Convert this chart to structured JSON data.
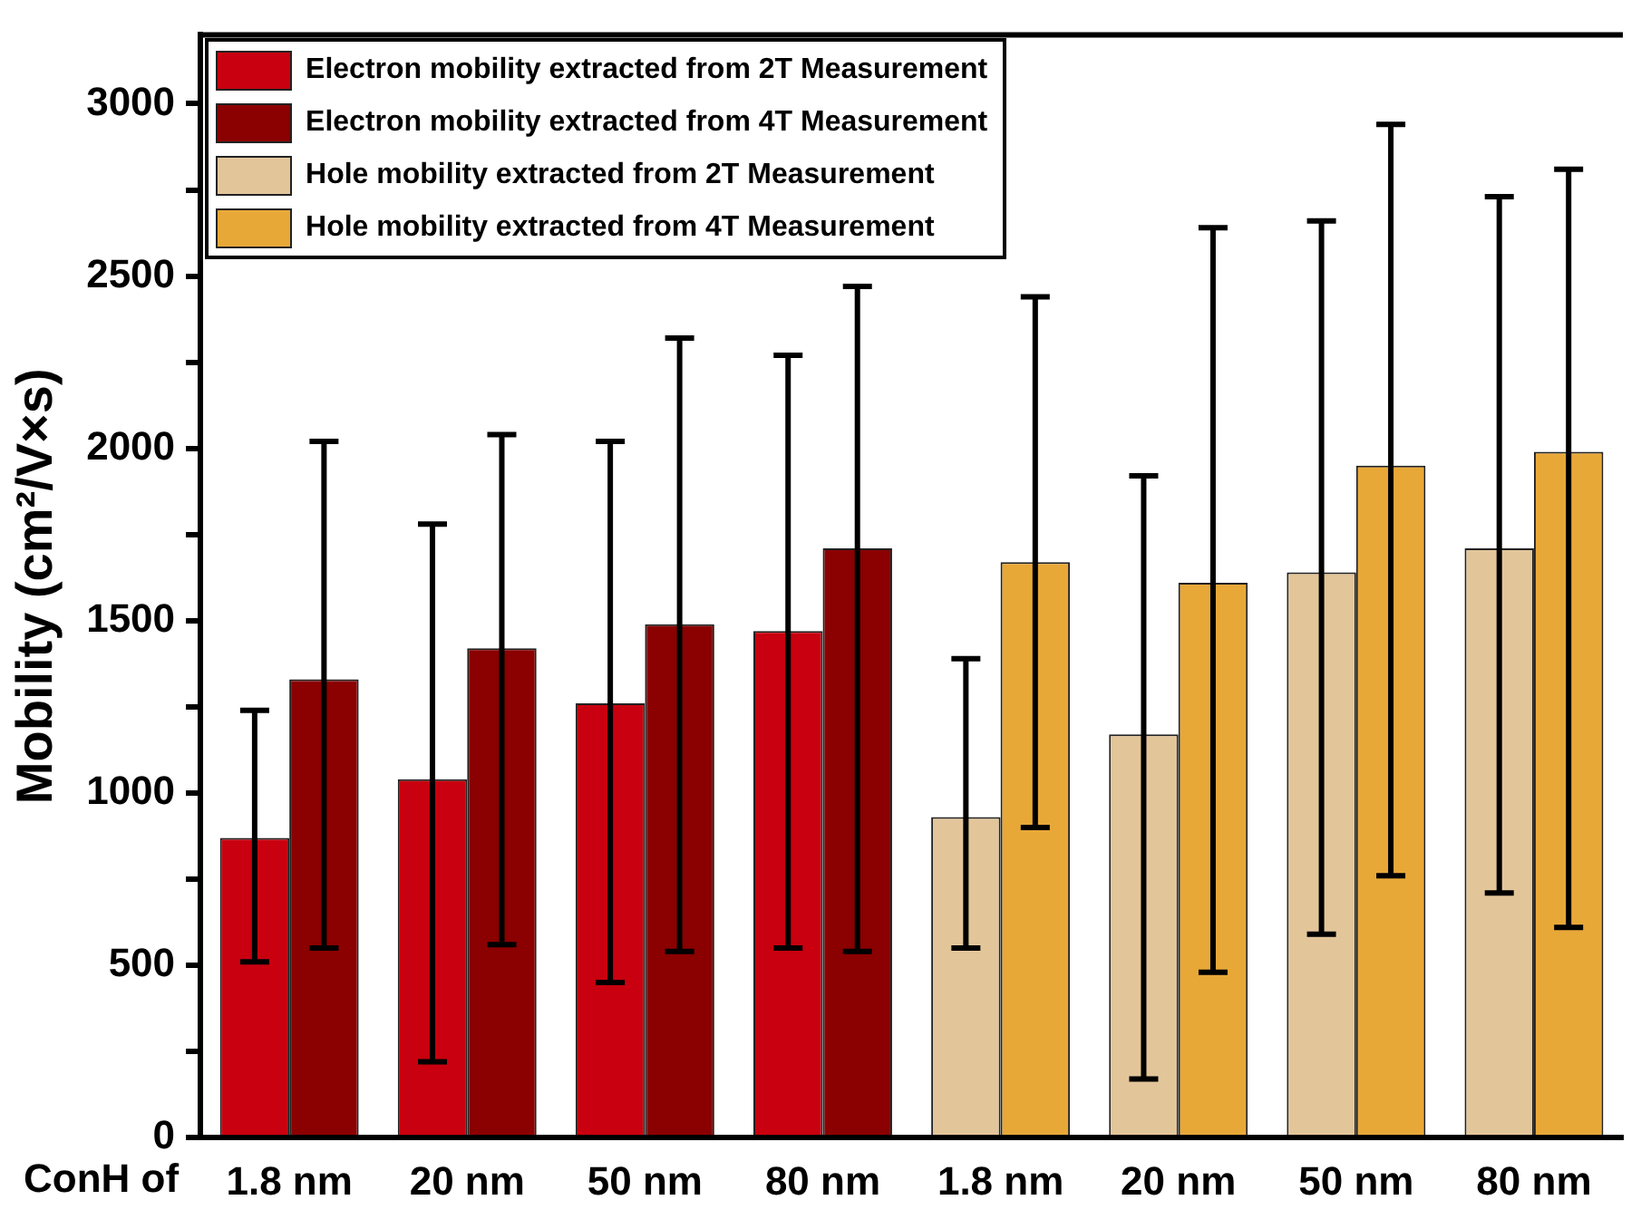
{
  "chart_data": {
    "type": "bar",
    "xlabel": "ConH of",
    "ylabel": "Mobility (cm²/V×s)",
    "categories": [
      "1.8 nm",
      "20 nm",
      "50 nm",
      "80 nm",
      "1.8 nm",
      "20 nm",
      "50 nm",
      "80 nm"
    ],
    "series": [
      {
        "name": "Electron mobility extracted from 2T Measurement",
        "color": "#c8000f",
        "values": [
          870,
          1040,
          1260,
          1470,
          null,
          null,
          null,
          null
        ],
        "errors": [
          [
            510,
            1240
          ],
          [
            220,
            1780
          ],
          [
            450,
            2020
          ],
          [
            550,
            2270
          ],
          null,
          null,
          null,
          null
        ]
      },
      {
        "name": "Electron mobility extracted from 4T Measurement",
        "color": "#8b0000",
        "values": [
          1330,
          1420,
          1490,
          1710,
          null,
          null,
          null,
          null
        ],
        "errors": [
          [
            550,
            2020
          ],
          [
            560,
            2040
          ],
          [
            540,
            2320
          ],
          [
            540,
            2470
          ],
          null,
          null,
          null,
          null
        ]
      },
      {
        "name": "Hole mobility extracted from 2T Measurement",
        "color": "#e3c59a",
        "values": [
          null,
          null,
          null,
          null,
          930,
          1170,
          1640,
          1710
        ],
        "errors": [
          null,
          null,
          null,
          null,
          [
            550,
            1390
          ],
          [
            170,
            1920
          ],
          [
            590,
            2660
          ],
          [
            710,
            2730
          ]
        ]
      },
      {
        "name": "Hole mobility extracted from 4T Measurement",
        "color": "#e8a838",
        "values": [
          null,
          null,
          null,
          null,
          1670,
          1610,
          1950,
          1990
        ],
        "errors": [
          null,
          null,
          null,
          null,
          [
            900,
            2440
          ],
          [
            480,
            2640
          ],
          [
            760,
            2940
          ],
          [
            610,
            2810
          ]
        ]
      }
    ],
    "ylim": [
      0,
      3200
    ],
    "yticks": [
      0,
      {
        "value": 250,
        "label": null
      },
      500,
      {
        "value": 750,
        "label": null
      },
      1000,
      {
        "value": 1250,
        "label": null
      },
      1500,
      {
        "value": 1750,
        "label": null
      },
      2000,
      {
        "value": 2250,
        "label": null
      },
      2500,
      {
        "value": 2750,
        "label": null
      },
      3000
    ],
    "legend": "top left",
    "grid": false
  }
}
